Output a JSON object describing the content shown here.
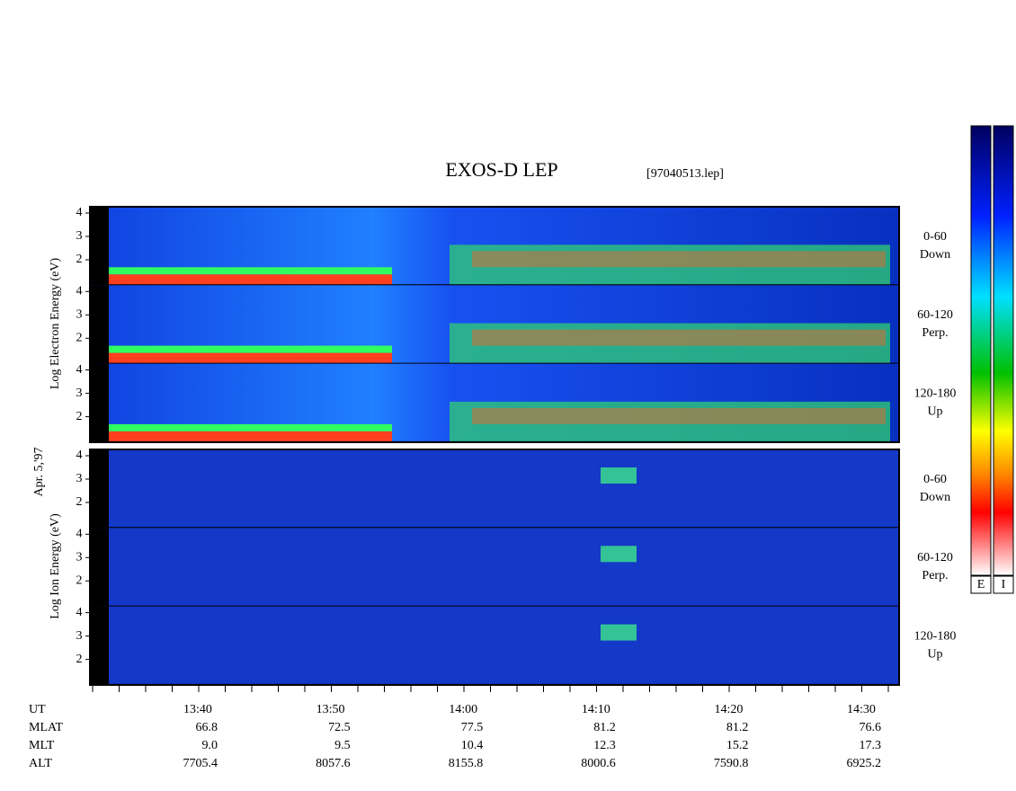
{
  "title": "EXOS-D LEP",
  "file": "[97040513.lep]",
  "date": "Apr. 5,'97",
  "electron": {
    "label": "Log Electron Energy (eV)",
    "yticks": [
      4,
      3,
      2
    ],
    "panels": [
      {
        "pitch": "0-60",
        "direction": "Down"
      },
      {
        "pitch": "60-120",
        "direction": "Perp."
      },
      {
        "pitch": "120-180",
        "direction": "Up"
      }
    ]
  },
  "ion": {
    "label": "Log Ion Energy (eV)",
    "yticks": [
      4,
      3,
      2
    ],
    "panels": [
      {
        "pitch": "0-60",
        "direction": "Down"
      },
      {
        "pitch": "60-120",
        "direction": "Perp."
      },
      {
        "pitch": "120-180",
        "direction": "Up"
      }
    ]
  },
  "time_axis": {
    "label": "UT",
    "ticks": [
      "13:40",
      "13:50",
      "14:00",
      "14:10",
      "14:20",
      "14:30"
    ],
    "rows": [
      {
        "label": "MLAT",
        "values": [
          "66.8",
          "72.5",
          "77.5",
          "81.2",
          "81.2",
          "76.6"
        ]
      },
      {
        "label": "MLT",
        "values": [
          "9.0",
          "9.5",
          "10.4",
          "12.3",
          "15.2",
          "17.3"
        ]
      },
      {
        "label": "ALT",
        "values": [
          "7705.4",
          "8057.6",
          "8155.8",
          "8000.6",
          "7590.8",
          "6925.2"
        ]
      }
    ]
  },
  "colorbars": [
    "E",
    "I"
  ]
}
